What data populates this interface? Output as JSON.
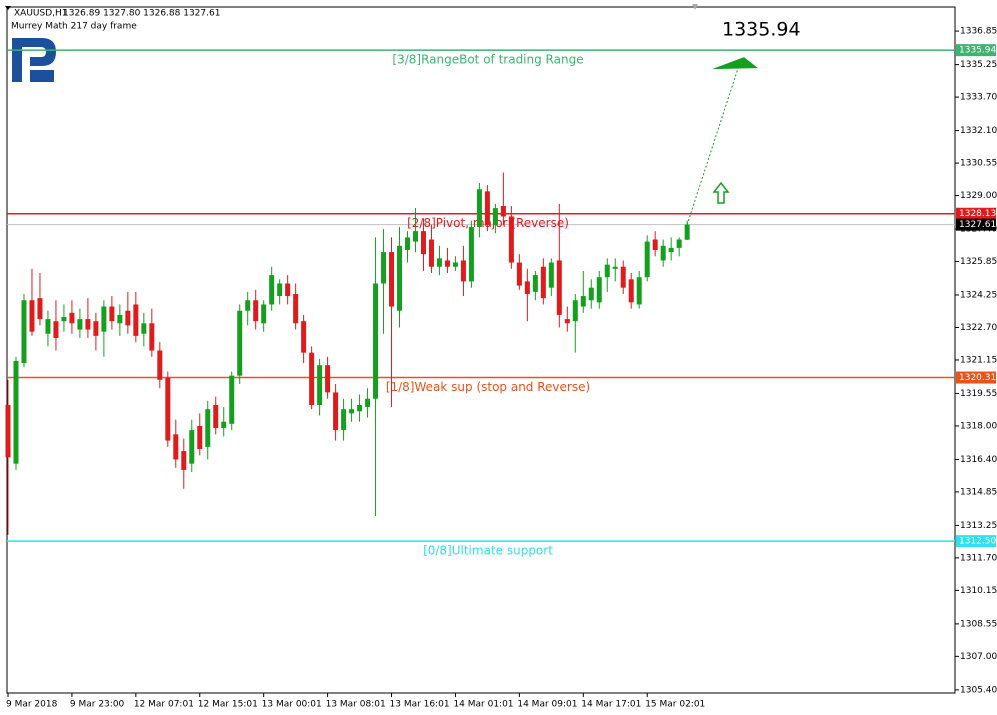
{
  "chart_data": {
    "type": "candlestick",
    "title": "XAUUSD,H1",
    "header": "1326.89 1327.80 1326.88 1327.61",
    "subtitle": "Murrey Math 217 day frame",
    "categories": [
      "9 Mar 2018",
      null,
      null,
      null,
      null,
      null,
      null,
      null,
      "9 Mar 23:00",
      null,
      null,
      null,
      null,
      null,
      null,
      null,
      "12 Mar 07:01",
      null,
      null,
      null,
      null,
      null,
      null,
      null,
      "12 Mar 15:01",
      null,
      null,
      null,
      null,
      null,
      null,
      null,
      "13 Mar 00:01",
      null,
      null,
      null,
      null,
      null,
      null,
      null,
      "13 Mar 08:01",
      null,
      null,
      null,
      null,
      null,
      null,
      null,
      "13 Mar 16:01",
      null,
      null,
      null,
      null,
      null,
      null,
      null,
      "14 Mar 01:01",
      null,
      null,
      null,
      null,
      null,
      null,
      null,
      "14 Mar 09:01",
      null,
      null,
      null,
      null,
      null,
      null,
      null,
      "14 Mar 17:01",
      null,
      null,
      null,
      null,
      null,
      null,
      null,
      "15 Mar 02:01",
      null,
      null,
      null,
      null,
      null
    ],
    "open": [
      1319.0,
      1316.2,
      1321.0,
      1324.0,
      1324.1,
      1322.4,
      1323.0,
      1323.0,
      1323.4,
      1322.6,
      1323.1,
      1323.0,
      1322.5,
      1323.7,
      1322.9,
      1323.5,
      1323.8,
      1322.4,
      1322.9,
      1321.6,
      1320.3,
      1317.6,
      1316.8,
      1316.2,
      1318.0,
      1317.0,
      1319.0,
      1317.9,
      1318.1,
      1320.4,
      1323.5,
      1324.0,
      1322.9,
      1323.8,
      1324.2,
      1324.8,
      1324.3,
      1323.0,
      1321.5,
      1319.0,
      1320.9,
      1319.6,
      1317.8,
      1318.6,
      1318.7,
      1318.9,
      1319.3,
      1324.8,
      1326.3,
      1323.5,
      1326.4,
      1326.8,
      1327.3,
      1326.9,
      1325.6,
      1325.9,
      1325.6,
      1325.9,
      1324.9,
      1327.5,
      1329.2,
      1327.6,
      1328.5,
      1328.0,
      1325.8,
      1324.9,
      1324.4,
      1325.6,
      1324.6,
      1325.9,
      1323.1,
      1323.0,
      1323.7,
      1324.0,
      1323.9,
      1325.1,
      1325.5,
      1325.6,
      1325.0,
      1323.8,
      1325.1,
      1326.9,
      1325.9,
      1326.3,
      1326.5,
      1326.89
    ],
    "high": [
      1320.2,
      1321.3,
      1324.3,
      1325.5,
      1325.3,
      1323.5,
      1324.0,
      1323.8,
      1324.0,
      1323.6,
      1324.1,
      1323.4,
      1324.0,
      1324.2,
      1323.8,
      1324.4,
      1324.4,
      1323.4,
      1323.6,
      1322.0,
      1320.6,
      1318.3,
      1317.4,
      1318.3,
      1318.6,
      1319.2,
      1319.4,
      1318.9,
      1320.6,
      1323.8,
      1324.4,
      1324.5,
      1324.0,
      1325.6,
      1325.0,
      1325.2,
      1324.8,
      1323.3,
      1321.8,
      1321.2,
      1321.3,
      1320.0,
      1319.3,
      1319.3,
      1319.5,
      1319.8,
      1327.0,
      1327.4,
      1327.0,
      1327.5,
      1327.3,
      1328.4,
      1327.9,
      1327.6,
      1326.6,
      1326.5,
      1326.1,
      1326.6,
      1327.8,
      1329.6,
      1329.5,
      1328.6,
      1330.1,
      1328.5,
      1326.2,
      1325.5,
      1325.4,
      1326.0,
      1326.0,
      1328.6,
      1323.7,
      1324.3,
      1325.4,
      1325.0,
      1325.4,
      1326.0,
      1326.0,
      1325.9,
      1325.3,
      1325.4,
      1327.1,
      1327.3,
      1326.9,
      1327.0,
      1327.0,
      1327.8
    ],
    "low": [
      1312.8,
      1315.9,
      1320.8,
      1322.3,
      1322.8,
      1321.8,
      1321.6,
      1322.5,
      1322.4,
      1322.2,
      1322.2,
      1321.6,
      1321.3,
      1322.6,
      1322.3,
      1322.4,
      1322.0,
      1321.8,
      1321.3,
      1319.8,
      1317.0,
      1316.0,
      1315.0,
      1315.8,
      1316.6,
      1316.4,
      1317.6,
      1317.5,
      1317.8,
      1320.0,
      1322.8,
      1322.6,
      1322.5,
      1323.5,
      1323.8,
      1323.8,
      1322.6,
      1321.0,
      1318.8,
      1318.5,
      1319.3,
      1317.3,
      1317.3,
      1318.2,
      1318.2,
      1318.4,
      1313.7,
      1322.4,
      1318.9,
      1322.7,
      1325.8,
      1326.3,
      1325.4,
      1325.3,
      1325.2,
      1325.3,
      1325.4,
      1324.2,
      1324.6,
      1327.0,
      1327.3,
      1327.2,
      1327.6,
      1325.5,
      1324.5,
      1323.0,
      1324.0,
      1323.8,
      1324.2,
      1322.7,
      1322.5,
      1321.5,
      1323.4,
      1323.6,
      1323.6,
      1324.4,
      1324.9,
      1324.3,
      1323.6,
      1323.6,
      1324.9,
      1326.1,
      1325.6,
      1325.9,
      1326.1,
      1326.88
    ],
    "close": [
      1316.5,
      1321.1,
      1324.0,
      1322.5,
      1323.1,
      1323.1,
      1322.2,
      1323.2,
      1322.9,
      1323.1,
      1322.6,
      1322.3,
      1323.7,
      1323.0,
      1323.3,
      1322.8,
      1322.3,
      1322.9,
      1321.6,
      1320.2,
      1317.3,
      1316.4,
      1315.9,
      1317.8,
      1316.9,
      1318.8,
      1317.9,
      1318.2,
      1320.4,
      1323.5,
      1324.0,
      1323.0,
      1323.8,
      1325.2,
      1324.8,
      1324.2,
      1322.9,
      1321.5,
      1319.0,
      1320.9,
      1319.6,
      1317.8,
      1318.8,
      1318.8,
      1319.0,
      1319.3,
      1324.8,
      1326.3,
      1323.7,
      1326.6,
      1327.0,
      1327.3,
      1326.2,
      1325.6,
      1326.0,
      1325.6,
      1325.8,
      1324.9,
      1327.5,
      1329.3,
      1327.6,
      1328.4,
      1328.0,
      1325.8,
      1324.7,
      1324.3,
      1325.2,
      1324.1,
      1325.8,
      1323.3,
      1322.9,
      1324.0,
      1324.2,
      1324.6,
      1325.1,
      1325.7,
      1325.6,
      1324.6,
      1323.9,
      1325.1,
      1326.8,
      1326.4,
      1326.6,
      1326.5,
      1326.9,
      1327.61
    ],
    "up_color": "#14a01e",
    "down_color": "#e01b1b",
    "ylim": [
      1305.25,
      1338.0
    ],
    "yticks": [
      1336.85,
      1335.25,
      {
        "value": 1333.7,
        "label": "1333.70"
      },
      {
        "value": 1332.1,
        "label": "1332.10"
      },
      1330.55,
      {
        "value": 1329.0,
        "label": "1329.00"
      },
      {
        "value": 1327.4,
        "label": "1327.40"
      },
      1325.85,
      1324.25,
      {
        "value": 1322.7,
        "label": "1322.70"
      },
      1321.15,
      1319.55,
      {
        "value": 1318.0,
        "label": "1318.00"
      },
      {
        "value": 1316.4,
        "label": "1316.40"
      },
      1314.85,
      1313.25,
      {
        "value": 1311.7,
        "label": "1311.70"
      },
      1310.15,
      1308.55,
      {
        "value": 1307.0,
        "label": "1307.00"
      },
      {
        "value": 1305.4,
        "label": "1305.40"
      }
    ],
    "levels": [
      {
        "name": "[3/8]RangeBot of trading Range",
        "value": 1335.94,
        "color": "#3cb371"
      },
      {
        "name": "[2/8]Pivot, major (Reverse)",
        "value": 1328.13,
        "color": "#e01b1b"
      },
      {
        "name": "[1/8]Weak sup (stop and Reverse)",
        "value": 1320.31,
        "color": "#e8531b"
      },
      {
        "name": "[0/8]Ultimate support",
        "value": 1312.5,
        "value_label": "1312.50",
        "color": "#2fe0ee"
      }
    ],
    "last_price": 1327.61,
    "target": 1335.94
  }
}
